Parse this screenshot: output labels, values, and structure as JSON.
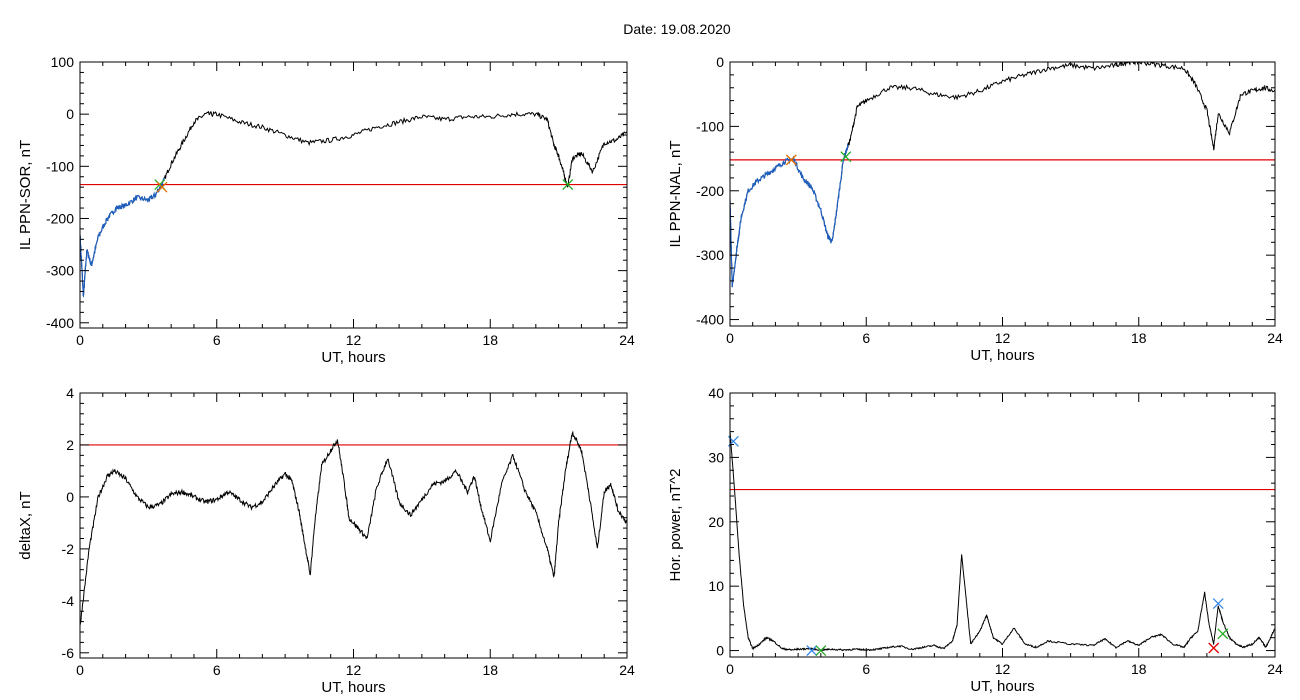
{
  "figure": {
    "title": "Date:  19.08.2020"
  },
  "colors": {
    "axis": "#000000",
    "trace": "#000000",
    "highlight": "#1f5fbf",
    "threshold": "#e00000",
    "marker_green": "#22aa22",
    "marker_orange": "#e07000",
    "marker_red": "#e00000",
    "marker_blue": "#3388ee"
  },
  "chart_data": [
    {
      "type": "line",
      "xlabel": "UT, hours",
      "ylabel": "IL PPN-SOR, nT",
      "xlim": [
        0,
        24
      ],
      "ylim": [
        -410,
        100
      ],
      "xticks": [
        0,
        6,
        12,
        18,
        24
      ],
      "yticks": [
        -400,
        -300,
        -200,
        -100,
        0,
        100
      ],
      "threshold": -135,
      "highlight_range": [
        0,
        3.7
      ],
      "series": [
        {
          "x": [
            0,
            0.15,
            0.3,
            0.5,
            0.8,
            1.2,
            1.6,
            2.0,
            2.5,
            3.0,
            3.3,
            3.6,
            4.0,
            4.5,
            5.0,
            5.5,
            6.0,
            7.0,
            8.0,
            9.0,
            10.0,
            11.0,
            12.0,
            13.0,
            14.0,
            15.0,
            16.0,
            17.0,
            18.0,
            19.0,
            20.0,
            20.5,
            20.8,
            21.0,
            21.2,
            21.4,
            21.6,
            22.0,
            22.5,
            23.0,
            23.5,
            24.0
          ],
          "y": [
            -230,
            -350,
            -260,
            -290,
            -235,
            -200,
            -180,
            -175,
            -160,
            -165,
            -155,
            -135,
            -95,
            -55,
            -15,
            0,
            0,
            -15,
            -25,
            -40,
            -55,
            -50,
            -40,
            -25,
            -15,
            -5,
            -10,
            -5,
            -5,
            0,
            0,
            -10,
            -60,
            -80,
            -110,
            -140,
            -85,
            -75,
            -110,
            -55,
            -50,
            -35
          ]
        }
      ],
      "markers": [
        {
          "x": 3.5,
          "y": -135,
          "symbol": "x",
          "color": "#22aa22"
        },
        {
          "x": 3.6,
          "y": -140,
          "symbol": "x",
          "color": "#e07000"
        },
        {
          "x": 21.4,
          "y": -135,
          "symbol": "x",
          "color": "#22aa22"
        }
      ]
    },
    {
      "type": "line",
      "xlabel": "UT, hours",
      "ylabel": "IL PPN-NAL, nT",
      "xlim": [
        0,
        24
      ],
      "ylim": [
        -410,
        0
      ],
      "xticks": [
        0,
        6,
        12,
        18,
        24
      ],
      "yticks": [
        -400,
        -300,
        -200,
        -100,
        0
      ],
      "threshold": -152,
      "highlight_range": [
        0,
        5.2
      ],
      "series": [
        {
          "x": [
            0,
            0.1,
            0.3,
            0.5,
            0.8,
            1.2,
            1.6,
            2.0,
            2.4,
            2.8,
            3.2,
            3.6,
            4.0,
            4.3,
            4.5,
            4.7,
            5.0,
            5.3,
            5.6,
            6.0,
            7.0,
            8.0,
            9.0,
            10.0,
            11.0,
            12.0,
            13.0,
            14.0,
            15.0,
            16.0,
            17.0,
            17.5,
            18.0,
            19.0,
            20.0,
            20.5,
            21.0,
            21.3,
            21.5,
            22.0,
            22.5,
            23.0,
            23.5,
            24.0
          ],
          "y": [
            -215,
            -350,
            -290,
            -240,
            -200,
            -185,
            -175,
            -165,
            -155,
            -150,
            -180,
            -195,
            -230,
            -270,
            -280,
            -230,
            -150,
            -120,
            -70,
            -60,
            -40,
            -40,
            -50,
            -55,
            -45,
            -30,
            -20,
            -10,
            -5,
            -10,
            -5,
            0,
            0,
            -5,
            -10,
            -35,
            -75,
            -135,
            -80,
            -110,
            -50,
            -45,
            -40,
            -45
          ]
        }
      ],
      "markers": [
        {
          "x": 2.7,
          "y": -152,
          "symbol": "x",
          "color": "#e07000"
        },
        {
          "x": 5.1,
          "y": -147,
          "symbol": "x",
          "color": "#22aa22"
        }
      ]
    },
    {
      "type": "line",
      "xlabel": "UT, hours",
      "ylabel": "deltaX, nT",
      "xlim": [
        0,
        24
      ],
      "ylim": [
        -6.2,
        4
      ],
      "xticks": [
        0,
        6,
        12,
        18,
        24
      ],
      "yticks": [
        -6,
        -4,
        -2,
        0,
        2,
        4
      ],
      "threshold": 2,
      "series": [
        {
          "x": [
            0,
            0.4,
            0.8,
            1.2,
            1.5,
            2.0,
            2.5,
            3.0,
            3.5,
            4.0,
            4.5,
            5.0,
            5.5,
            6.0,
            6.5,
            7.0,
            7.5,
            8.0,
            8.5,
            9.0,
            9.3,
            9.6,
            9.9,
            10.1,
            10.3,
            10.6,
            11.0,
            11.3,
            11.6,
            11.8,
            12.2,
            12.6,
            13.0,
            13.5,
            14.0,
            14.5,
            15.0,
            15.5,
            16.0,
            16.5,
            17.0,
            17.3,
            17.6,
            18.0,
            18.5,
            19.0,
            19.5,
            20.0,
            20.5,
            20.8,
            21.0,
            21.3,
            21.6,
            22.0,
            22.3,
            22.7,
            23.0,
            23.3,
            23.6,
            24.0
          ],
          "y": [
            -5.0,
            -2.0,
            0.0,
            0.8,
            1.0,
            0.7,
            0.0,
            -0.4,
            -0.3,
            0.1,
            0.2,
            0.0,
            -0.2,
            -0.1,
            0.2,
            -0.1,
            -0.4,
            -0.2,
            0.4,
            0.9,
            0.6,
            -0.5,
            -2.0,
            -3.0,
            -1.0,
            1.2,
            1.8,
            2.2,
            0.5,
            -0.8,
            -1.2,
            -1.6,
            0.3,
            1.5,
            -0.2,
            -0.7,
            -0.1,
            0.5,
            0.6,
            1.0,
            0.2,
            0.8,
            -0.4,
            -1.7,
            0.5,
            1.6,
            0.3,
            -0.6,
            -2.0,
            -3.1,
            -1.0,
            1.0,
            2.5,
            1.8,
            0.3,
            -2.0,
            0.2,
            0.5,
            -0.5,
            -1.0
          ]
        }
      ]
    },
    {
      "type": "line",
      "xlabel": "UT, hours",
      "ylabel": "Hor. power, nT^2",
      "xlim": [
        0,
        24
      ],
      "ylim": [
        -1,
        40
      ],
      "xticks": [
        0,
        6,
        12,
        18,
        24
      ],
      "yticks": [
        0,
        10,
        20,
        30,
        40
      ],
      "threshold": 25,
      "series": [
        {
          "x": [
            0,
            0.2,
            0.4,
            0.6,
            0.8,
            1.0,
            1.3,
            1.6,
            1.9,
            2.3,
            2.7,
            3.0,
            3.5,
            4.0,
            4.5,
            5.0,
            5.5,
            6.0,
            6.5,
            7.0,
            7.5,
            8.0,
            8.5,
            9.0,
            9.4,
            9.8,
            10.0,
            10.2,
            10.4,
            10.6,
            11.0,
            11.3,
            11.6,
            12.0,
            12.5,
            13.0,
            13.5,
            14.0,
            15.0,
            16.0,
            16.5,
            17.0,
            17.5,
            18.0,
            18.5,
            19.0,
            19.5,
            20.0,
            20.3,
            20.6,
            20.9,
            21.1,
            21.3,
            21.5,
            21.7,
            22.0,
            22.3,
            22.6,
            23.0,
            23.3,
            23.6,
            24.0
          ],
          "y": [
            34,
            25,
            15,
            7,
            2,
            0.3,
            1.0,
            2.0,
            1.5,
            0.3,
            0.1,
            0.2,
            0.3,
            0.1,
            0.2,
            0.1,
            0.2,
            0.1,
            0.2,
            0.5,
            0.7,
            0.2,
            0.5,
            0.8,
            0.3,
            1.5,
            4.0,
            15,
            8,
            1.0,
            3.0,
            5.5,
            2.0,
            1.0,
            3.5,
            1.0,
            0.5,
            1.5,
            1.0,
            0.8,
            1.8,
            0.5,
            1.5,
            0.8,
            2.0,
            2.5,
            1.0,
            0.5,
            2.0,
            3.0,
            9.0,
            4.0,
            1.0,
            7.0,
            4.5,
            2.0,
            1.0,
            0.5,
            1.0,
            2.0,
            0.5,
            3.5
          ]
        }
      ],
      "markers": [
        {
          "x": 0.15,
          "y": 32.5,
          "symbol": "x",
          "color": "#3388ee"
        },
        {
          "x": 3.6,
          "y": 0.0,
          "symbol": "x",
          "color": "#3388ee"
        },
        {
          "x": 4.0,
          "y": 0.0,
          "symbol": "x",
          "color": "#22aa22"
        },
        {
          "x": 21.5,
          "y": 7.3,
          "symbol": "x",
          "color": "#3388ee"
        },
        {
          "x": 21.7,
          "y": 2.6,
          "symbol": "x",
          "color": "#22aa22"
        },
        {
          "x": 21.3,
          "y": 0.4,
          "symbol": "x",
          "color": "#e00000"
        }
      ]
    }
  ]
}
